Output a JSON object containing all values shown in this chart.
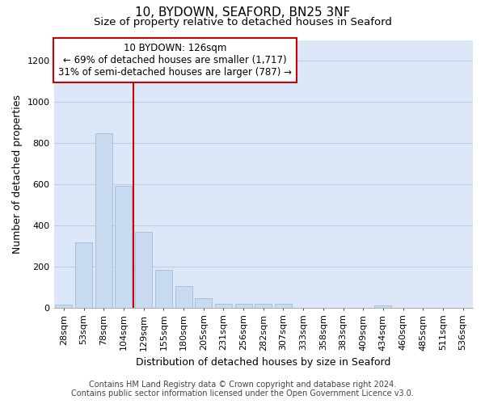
{
  "title": "10, BYDOWN, SEAFORD, BN25 3NF",
  "subtitle": "Size of property relative to detached houses in Seaford",
  "xlabel": "Distribution of detached houses by size in Seaford",
  "ylabel": "Number of detached properties",
  "categories": [
    "28sqm",
    "53sqm",
    "78sqm",
    "104sqm",
    "129sqm",
    "155sqm",
    "180sqm",
    "205sqm",
    "231sqm",
    "256sqm",
    "282sqm",
    "307sqm",
    "333sqm",
    "358sqm",
    "383sqm",
    "409sqm",
    "434sqm",
    "460sqm",
    "485sqm",
    "511sqm",
    "536sqm"
  ],
  "values": [
    15,
    318,
    848,
    592,
    370,
    183,
    105,
    47,
    20,
    18,
    18,
    18,
    0,
    0,
    0,
    0,
    10,
    0,
    0,
    0,
    0
  ],
  "bar_color": "#c8daf0",
  "bar_edge_color": "#a0bcd8",
  "vline_color": "#cc0000",
  "vline_index": 3.5,
  "annotation_text": "10 BYDOWN: 126sqm\n← 69% of detached houses are smaller (1,717)\n31% of semi-detached houses are larger (787) →",
  "ylim": [
    0,
    1300
  ],
  "yticks": [
    0,
    200,
    400,
    600,
    800,
    1000,
    1200
  ],
  "grid_color": "#c0cce0",
  "background_color": "#dce8f8",
  "footer_line1": "Contains HM Land Registry data © Crown copyright and database right 2024.",
  "footer_line2": "Contains public sector information licensed under the Open Government Licence v3.0.",
  "title_fontsize": 11,
  "subtitle_fontsize": 9.5,
  "axis_label_fontsize": 9,
  "tick_fontsize": 8,
  "annotation_fontsize": 8.5,
  "footer_fontsize": 7
}
